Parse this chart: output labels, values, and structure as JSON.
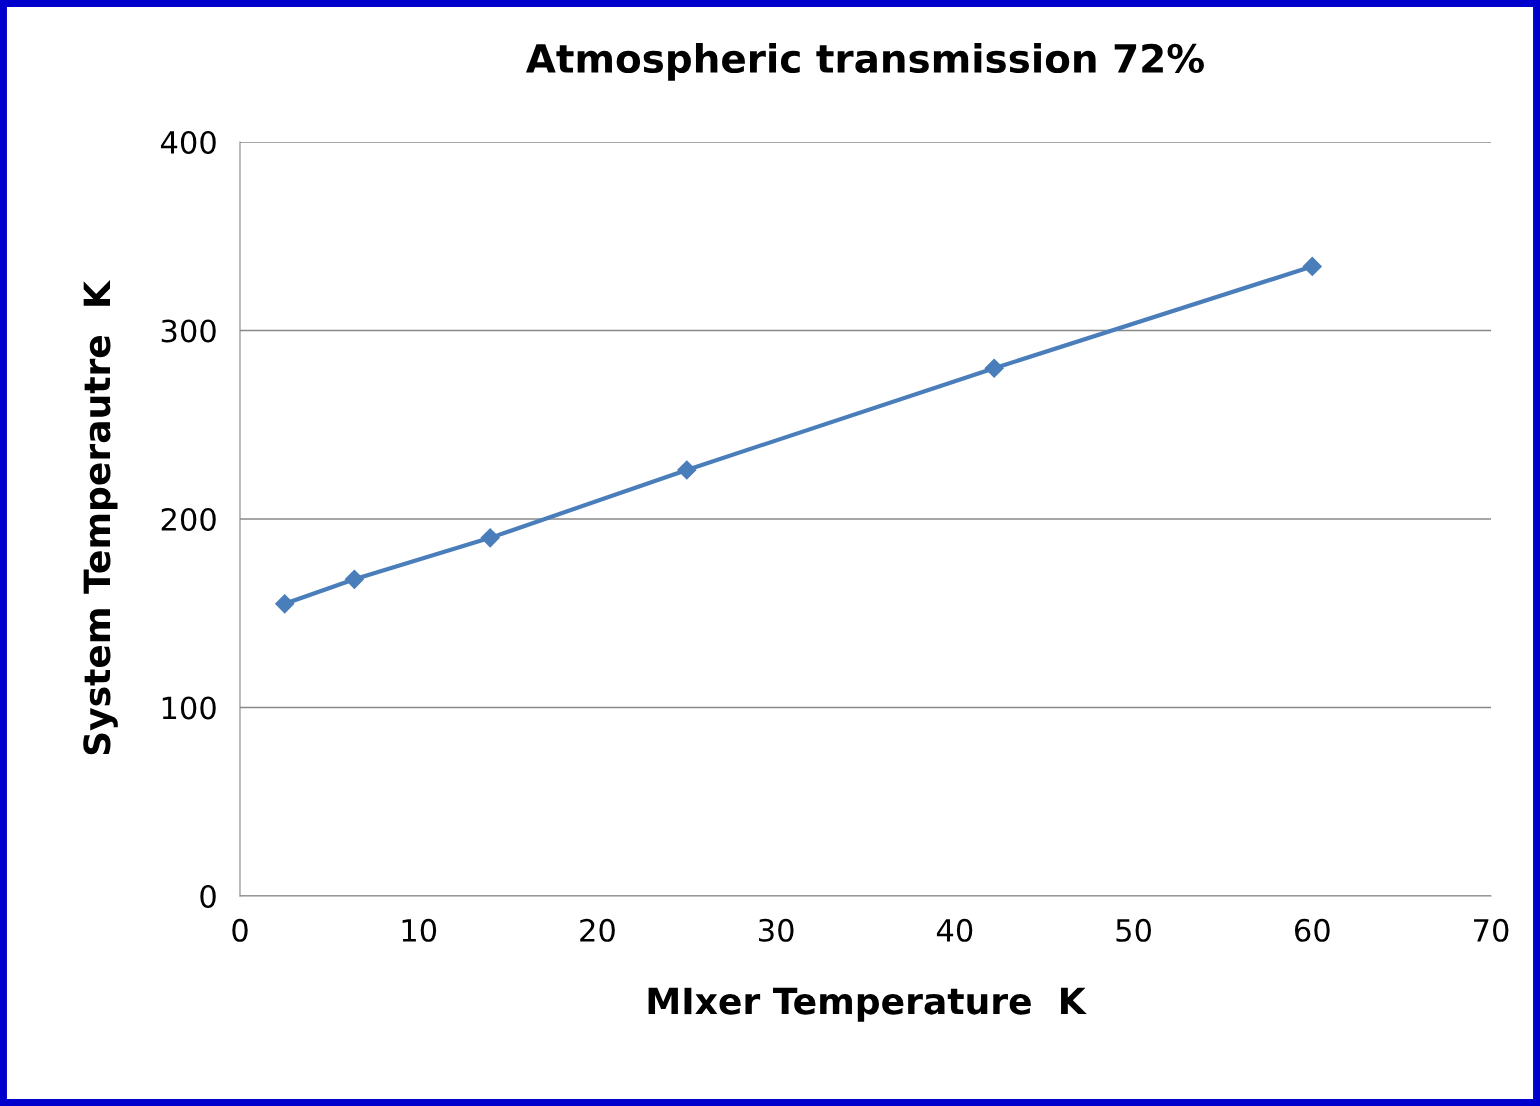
{
  "chart_data": {
    "type": "line",
    "title": "Atmospheric transmission 72%",
    "xlabel": "MIxer Temperature  K",
    "ylabel": "System Temperautre  K",
    "x": [
      2.5,
      6.4,
      14.0,
      25.0,
      42.2,
      60.0
    ],
    "series": [
      {
        "color": "#4a7ebb",
        "values": [
          155,
          168,
          190,
          226,
          280,
          334
        ]
      }
    ],
    "xlim": [
      0,
      70
    ],
    "xticks": [
      0,
      10,
      20,
      30,
      40,
      50,
      60,
      70
    ],
    "ylim": [
      0,
      400
    ],
    "yticks": [
      0,
      100,
      200,
      300,
      400
    ],
    "grid": "y",
    "marker": "diamond",
    "line_style": "solid",
    "legend": false
  }
}
